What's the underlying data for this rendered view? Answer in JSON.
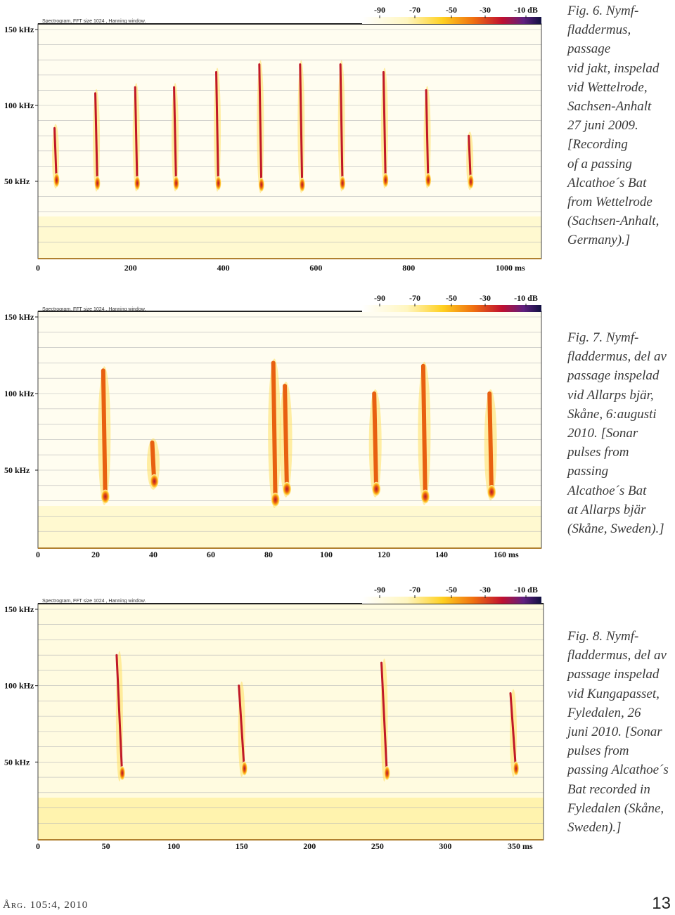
{
  "figures": [
    {
      "caption": "Fig. 6. Nymf-\nfladdermus, passage\nvid jakt, inspelad\nvid Wettelrode,\nSachsen-Anhalt\n27 juni 2009.\n[Recording\nof a passing\nAlcathoe´s Bat\nfrom Wettelrode\n(Sachsen-Anhalt,\nGermany).]",
      "spectrogram_label": "Spectrogram, FFT size 1024 , Hanning window.",
      "y_labels": [
        "150 kHz",
        "100 kHz",
        "50 kHz"
      ],
      "db_labels": [
        "-90",
        "-70",
        "-50",
        "-30",
        "-10 dB"
      ],
      "x_labels": [
        "0",
        "200",
        "400",
        "600",
        "800",
        "1000 ms"
      ],
      "chart_data": {
        "type": "spectrogram",
        "x_unit": "ms",
        "xlim": [
          0,
          1110
        ],
        "ylim": [
          0,
          150
        ],
        "pulses": [
          {
            "t": 38,
            "f_top": 85,
            "f_bottom": 48
          },
          {
            "t": 126,
            "f_top": 108,
            "f_bottom": 46
          },
          {
            "t": 212,
            "f_top": 112,
            "f_bottom": 46
          },
          {
            "t": 296,
            "f_top": 112,
            "f_bottom": 46
          },
          {
            "t": 387,
            "f_top": 122,
            "f_bottom": 46
          },
          {
            "t": 480,
            "f_top": 127,
            "f_bottom": 45
          },
          {
            "t": 568,
            "f_top": 127,
            "f_bottom": 45
          },
          {
            "t": 655,
            "f_top": 127,
            "f_bottom": 46
          },
          {
            "t": 748,
            "f_top": 122,
            "f_bottom": 48
          },
          {
            "t": 840,
            "f_top": 110,
            "f_bottom": 48
          },
          {
            "t": 932,
            "f_top": 80,
            "f_bottom": 47
          }
        ]
      }
    },
    {
      "caption": "Fig. 7. Nymf-\nfladdermus, del av\npassage inspelad\nvid Allarps bjär,\nSkåne, 6:augusti\n2010. [Sonar\npulses from passing\nAlcathoe´s Bat\nat Allarps bjär\n(Skåne, Sweden).]",
      "spectrogram_label": "Spectrogram, FFT size 1024 , Hanning window.",
      "y_labels": [
        "150 kHz",
        "100 kHz",
        "50 kHz"
      ],
      "db_labels": [
        "-90",
        "-70",
        "-50",
        "-30",
        "-10 dB"
      ],
      "x_labels": [
        "0",
        "20",
        "40",
        "60",
        "80",
        "100",
        "120",
        "140",
        "160 ms"
      ],
      "chart_data": {
        "type": "spectrogram",
        "x_unit": "ms",
        "xlim": [
          0,
          175
        ],
        "ylim": [
          0,
          150
        ],
        "pulses": [
          {
            "t": 23,
            "f_top": 115,
            "f_bottom": 30
          },
          {
            "t": 40,
            "f_top": 68,
            "f_bottom": 40
          },
          {
            "t": 82,
            "f_top": 120,
            "f_bottom": 28
          },
          {
            "t": 86,
            "f_top": 105,
            "f_bottom": 35
          },
          {
            "t": 117,
            "f_top": 100,
            "f_bottom": 35
          },
          {
            "t": 134,
            "f_top": 118,
            "f_bottom": 30
          },
          {
            "t": 157,
            "f_top": 100,
            "f_bottom": 33
          }
        ]
      }
    },
    {
      "caption": "Fig. 8. Nymf-\nfladdermus, del av\npassage inspelad\nvid Kungapasset,\nFyledalen, 26\njuni 2010. [Sonar\npulses from\npassing Alcathoe´s\nBat recorded in\nFyledalen (Skåne,\nSweden).]",
      "spectrogram_label": "Spectrogram, FFT size 1024 , Hanning window.",
      "y_labels": [
        "150 kHz",
        "100 kHz",
        "50 kHz"
      ],
      "db_labels": [
        "-90",
        "-70",
        "-50",
        "-30",
        "-10 dB"
      ],
      "x_labels": [
        "0",
        "50",
        "100",
        "150",
        "200",
        "250",
        "300",
        "350 ms"
      ],
      "chart_data": {
        "type": "spectrogram",
        "x_unit": "ms",
        "xlim": [
          0,
          380
        ],
        "ylim": [
          0,
          150
        ],
        "pulses": [
          {
            "t": 60,
            "f_top": 120,
            "f_bottom": 40
          },
          {
            "t": 150,
            "f_top": 100,
            "f_bottom": 43
          },
          {
            "t": 255,
            "f_top": 115,
            "f_bottom": 40
          },
          {
            "t": 350,
            "f_top": 95,
            "f_bottom": 43
          }
        ]
      }
    }
  ],
  "footer": {
    "left": "Årg. 105:4, 2010",
    "page": "13"
  }
}
